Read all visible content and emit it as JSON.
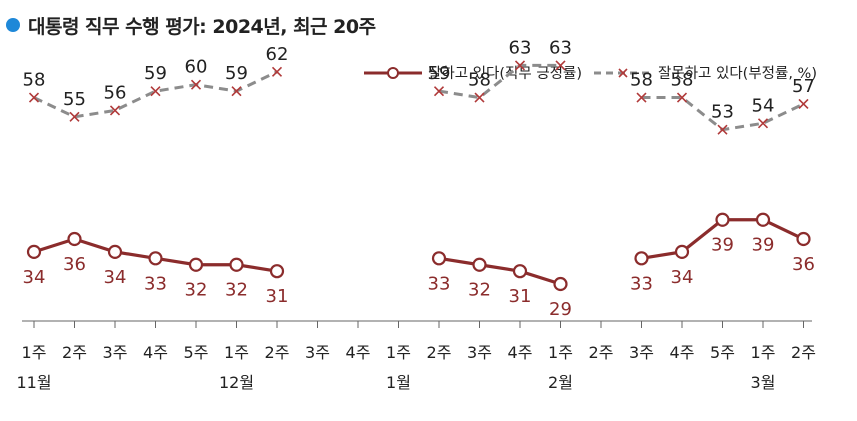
{
  "title": "대통령 직무 수행 평가: 2024년, 최근 20주",
  "colors": {
    "title_dot": "#1e88d8",
    "approve": "#8b2c2c",
    "disapprove": "#8c8c8c",
    "disapprove_marker": "#b03a3a",
    "axis": "#666666"
  },
  "chart_data": {
    "type": "line",
    "title": "대통령 직무 수행 평가: 2024년, 최근 20주",
    "x": [
      "1주",
      "2주",
      "3주",
      "4주",
      "5주",
      "1주",
      "2주",
      "3주",
      "4주",
      "1주",
      "2주",
      "3주",
      "4주",
      "1주",
      "2주",
      "3주",
      "4주",
      "5주",
      "1주",
      "2주"
    ],
    "months": [
      {
        "label": "11월",
        "index": 0
      },
      {
        "label": "12월",
        "index": 5
      },
      {
        "label": "1월",
        "index": 9
      },
      {
        "label": "2월",
        "index": 13
      },
      {
        "label": "3월",
        "index": 18
      }
    ],
    "series": [
      {
        "name": "잘하고 있다(직무 긍정률)",
        "marker": "circle",
        "values": [
          34,
          36,
          34,
          33,
          32,
          32,
          31,
          null,
          null,
          null,
          33,
          32,
          31,
          29,
          null,
          33,
          34,
          39,
          39,
          36
        ]
      },
      {
        "name": "잘못하고 있다(부정률, %)",
        "marker": "x",
        "dashed": true,
        "values": [
          58,
          55,
          56,
          59,
          60,
          59,
          62,
          null,
          null,
          null,
          59,
          58,
          63,
          63,
          null,
          58,
          58,
          53,
          54,
          57
        ]
      }
    ]
  }
}
